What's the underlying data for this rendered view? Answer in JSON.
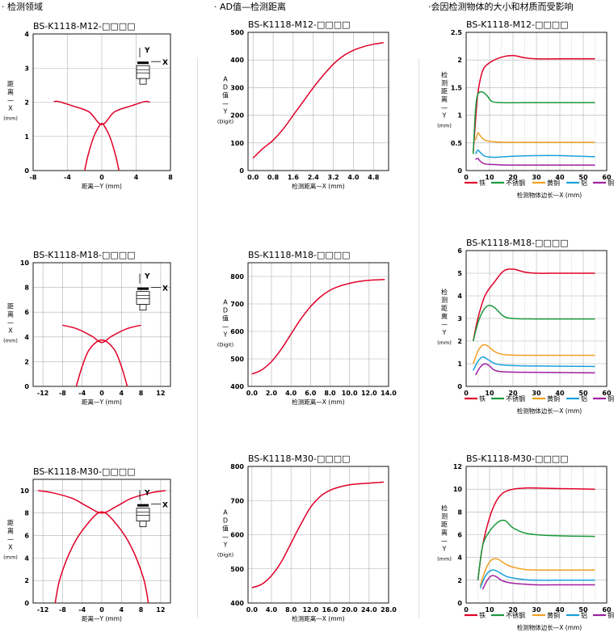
{
  "headers": {
    "col1": "· 检测领域",
    "col2": "· AD值—检测距离",
    "col3": "·会因检测物体的大小和材质而受影响"
  },
  "colors": {
    "iron": "#e00028",
    "stainless": "#1a9a3c",
    "brass": "#f0a020",
    "aluminum": "#1aa0dc",
    "copper": "#a020a0",
    "grid": "#b0b0b0"
  },
  "icon": "sensor-probe-icon",
  "chart_data": [
    {
      "type": "line",
      "title": "BS-K1118-M12-□□□□",
      "xlabel": "距离—Y (mm)",
      "ylabel": "距离—X (mm)",
      "ylabel_chars": [
        "距",
        "离",
        "—",
        "X"
      ],
      "ylabel_unit": "(mm)",
      "xlim": [
        -8,
        8
      ],
      "ylim": [
        0,
        4
      ],
      "xticks": [
        -8,
        -4,
        0,
        4,
        8
      ],
      "yticks": [
        0,
        1,
        2,
        3,
        4
      ],
      "icon_labels": {
        "y": "Y",
        "x": "X"
      },
      "series": [
        {
          "x": [
            -5.6,
            -5,
            -3.5,
            -1.5,
            0,
            1.5,
            3.5,
            5,
            5.6
          ],
          "y": [
            2.02,
            2.02,
            1.9,
            1.72,
            1.35,
            1.72,
            1.9,
            2.02,
            2.0
          ]
        },
        {
          "x": [
            -2.0,
            -1.6,
            -1.0,
            -0.5,
            0,
            0.5,
            1.0,
            1.6,
            2.0
          ],
          "y": [
            0.0,
            0.45,
            0.95,
            1.22,
            1.38,
            1.22,
            0.95,
            0.45,
            0.0
          ]
        }
      ]
    },
    {
      "type": "line",
      "title": "BS-K1118-M18-□□□□",
      "xlabel": "距离—Y (mm)",
      "ylabel": "距离—X (mm)",
      "ylabel_chars": [
        "距",
        "离",
        "—",
        "X"
      ],
      "ylabel_unit": "(mm)",
      "xlim": [
        -14,
        14
      ],
      "ylim": [
        0,
        10
      ],
      "xticks": [
        -12,
        -8,
        -4,
        0,
        4,
        8,
        12
      ],
      "yticks": [
        0,
        2,
        4,
        6,
        8,
        10
      ],
      "icon_labels": {
        "y": "Y",
        "x": "X"
      },
      "series": [
        {
          "x": [
            -8,
            -5,
            -2,
            0,
            2,
            5,
            8
          ],
          "y": [
            4.95,
            4.65,
            4.05,
            3.55,
            4.05,
            4.65,
            4.95
          ]
        },
        {
          "x": [
            -5.2,
            -4.0,
            -2.5,
            0,
            2.5,
            4.0,
            5.2
          ],
          "y": [
            0,
            1.6,
            3.0,
            3.75,
            3.0,
            1.6,
            0
          ]
        }
      ]
    },
    {
      "type": "line",
      "title": "BS-K1118-M30-□□□□",
      "xlabel": "距离—Y (mm)",
      "ylabel": "距离—X (mm)",
      "ylabel_chars": [
        "距",
        "离",
        "—",
        "X"
      ],
      "ylabel_unit": "(mm)",
      "xlim": [
        -14,
        14
      ],
      "ylim": [
        0,
        11
      ],
      "xticks": [
        -12,
        -8,
        -4,
        0,
        4,
        8,
        12
      ],
      "yticks": [
        0,
        2,
        4,
        6,
        8,
        10
      ],
      "icon_labels": {
        "y": "Y",
        "x": "X"
      },
      "series": [
        {
          "x": [
            -13,
            -10,
            -6,
            -3,
            0,
            3,
            6,
            10,
            13
          ],
          "y": [
            10.0,
            9.8,
            9.3,
            8.6,
            8.0,
            8.6,
            9.3,
            9.8,
            10.0
          ]
        },
        {
          "x": [
            -9.5,
            -8.5,
            -6,
            -3,
            0,
            3,
            6,
            8.5,
            9.5
          ],
          "y": [
            0,
            2.2,
            5.0,
            7.0,
            8.1,
            7.0,
            5.0,
            2.2,
            0
          ]
        }
      ]
    },
    {
      "type": "line",
      "title": "BS-K1118-M12-□□□□",
      "xlabel": "检测距离—X (mm)",
      "ylabel": "AD值—Y (Digit)",
      "ylabel_chars": [
        "A",
        "D",
        "值",
        "—",
        "Y"
      ],
      "ylabel_unit": "(Digit)",
      "xlim": [
        -0.2,
        5.4
      ],
      "ylim": [
        0,
        500
      ],
      "xticks": [
        0.0,
        0.8,
        1.6,
        2.4,
        3.2,
        4.0,
        4.8
      ],
      "xtick_labels": [
        "0.0",
        "0.8",
        "1.6",
        "2.4",
        "3.2",
        "4.0",
        "4.8"
      ],
      "yticks": [
        0,
        100,
        200,
        300,
        400,
        500
      ],
      "series": [
        {
          "x": [
            0.0,
            0.4,
            0.8,
            1.2,
            1.6,
            2.0,
            2.4,
            2.8,
            3.2,
            3.6,
            4.0,
            4.4,
            4.8,
            5.2
          ],
          "y": [
            45,
            80,
            110,
            150,
            200,
            250,
            300,
            345,
            385,
            415,
            435,
            448,
            457,
            463
          ]
        }
      ]
    },
    {
      "type": "line",
      "title": "BS-K1118-M18-□□□□",
      "xlabel": "检测距离—X (mm)",
      "ylabel": "AD值—Y (Digit)",
      "ylabel_chars": [
        "A",
        "D",
        "值",
        "—",
        "Y"
      ],
      "ylabel_unit": "(Digit)",
      "xlim": [
        -0.4,
        14.0
      ],
      "ylim": [
        400,
        850
      ],
      "xticks": [
        0,
        2,
        4,
        6,
        8,
        10,
        12,
        14
      ],
      "xtick_labels": [
        "0.0",
        "2.0",
        "4.0",
        "6.0",
        "8.0",
        "10.0",
        "12.0",
        "14.0"
      ],
      "yticks": [
        400,
        500,
        600,
        700,
        800
      ],
      "series": [
        {
          "x": [
            0,
            1,
            2,
            3,
            4,
            5,
            6,
            7,
            8,
            9,
            10,
            11,
            12,
            13,
            13.6
          ],
          "y": [
            445,
            460,
            490,
            535,
            590,
            645,
            690,
            725,
            750,
            765,
            775,
            782,
            786,
            788,
            789
          ]
        }
      ]
    },
    {
      "type": "line",
      "title": "BS-K1118-M30-□□□□",
      "xlabel": "检测距离—X (mm)",
      "ylabel": "AD值—Y (Digit)",
      "ylabel_chars": [
        "A",
        "D",
        "值",
        "—",
        "Y"
      ],
      "ylabel_unit": "(Digit)",
      "xlim": [
        -0.8,
        28.0
      ],
      "ylim": [
        400,
        800
      ],
      "xticks": [
        0,
        4,
        8,
        12,
        16,
        20,
        24,
        28
      ],
      "xtick_labels": [
        "0.0",
        "4.0",
        "8.0",
        "12.0",
        "16.0",
        "20.0",
        "24.0",
        "28.0"
      ],
      "yticks": [
        400,
        500,
        600,
        700,
        800
      ],
      "series": [
        {
          "x": [
            0,
            2,
            4,
            6,
            8,
            10,
            12,
            14,
            16,
            18,
            20,
            22,
            24,
            26,
            27
          ],
          "y": [
            445,
            455,
            480,
            520,
            575,
            630,
            680,
            712,
            730,
            740,
            746,
            749,
            751,
            753,
            754
          ]
        }
      ]
    },
    {
      "type": "line",
      "title": "BS-K1118-M12-□□□□",
      "xlabel": "检测物体边长—X (mm)",
      "ylabel": "检测距离—Y (mm)",
      "ylabel_chars": [
        "检",
        "测",
        "距",
        "离",
        "—",
        "Y"
      ],
      "ylabel_unit": "(mm)",
      "xlim": [
        0,
        60
      ],
      "ylim": [
        0,
        2.5
      ],
      "xticks": [
        0,
        10,
        20,
        30,
        40,
        50,
        60
      ],
      "yticks": [
        0,
        0.5,
        1,
        1.5,
        2,
        2.5
      ],
      "ytick_labels": [
        "0",
        "0.5",
        "1",
        "1.5",
        "2",
        "2.5"
      ],
      "legend": [
        "铁",
        "不锈钢",
        "黄铜",
        "铝",
        "铜"
      ],
      "series": [
        {
          "name": "铁",
          "x": [
            3,
            4,
            5,
            7,
            10,
            15,
            20,
            25,
            30,
            40,
            55
          ],
          "y": [
            0.3,
            0.9,
            1.4,
            1.8,
            1.95,
            2.05,
            2.08,
            2.04,
            2.02,
            2.02,
            2.02
          ]
        },
        {
          "name": "不锈钢",
          "x": [
            3,
            4,
            5,
            7,
            9,
            11,
            15,
            25,
            55
          ],
          "y": [
            0.3,
            1.1,
            1.38,
            1.42,
            1.35,
            1.25,
            1.23,
            1.23,
            1.23
          ]
        },
        {
          "name": "黄铜",
          "x": [
            4,
            5,
            6,
            8,
            12,
            20,
            55
          ],
          "y": [
            0.55,
            0.68,
            0.63,
            0.55,
            0.52,
            0.51,
            0.51
          ]
        },
        {
          "name": "铝",
          "x": [
            4,
            5,
            6,
            8,
            12,
            20,
            30,
            40,
            55
          ],
          "y": [
            0.3,
            0.37,
            0.33,
            0.26,
            0.24,
            0.26,
            0.27,
            0.27,
            0.25
          ]
        },
        {
          "name": "铜",
          "x": [
            4,
            5,
            6,
            8,
            12,
            20,
            55
          ],
          "y": [
            0.2,
            0.22,
            0.17,
            0.12,
            0.11,
            0.1,
            0.1
          ]
        }
      ]
    },
    {
      "type": "line",
      "title": "BS-K1118-M18-□□□□",
      "xlabel": "检测物体边长—X (mm)",
      "ylabel": "检测距离—Y (mm)",
      "ylabel_chars": [
        "检",
        "测",
        "距",
        "离",
        "—",
        "Y"
      ],
      "ylabel_unit": "(mm)",
      "xlim": [
        0,
        60
      ],
      "ylim": [
        0,
        6
      ],
      "xticks": [
        0,
        10,
        20,
        30,
        40,
        50,
        60
      ],
      "yticks": [
        0,
        1,
        2,
        3,
        4,
        5,
        6
      ],
      "legend": [
        "铁",
        "不锈钢",
        "黄铜",
        "铝",
        "铜"
      ],
      "series": [
        {
          "name": "铁",
          "x": [
            3,
            5,
            8,
            12,
            16,
            20,
            25,
            30,
            40,
            55
          ],
          "y": [
            2.0,
            3.0,
            4.0,
            4.6,
            5.1,
            5.18,
            5.05,
            5.0,
            5.0,
            5.0
          ]
        },
        {
          "name": "不锈钢",
          "x": [
            3,
            5,
            7,
            9,
            11,
            13,
            16,
            20,
            30,
            55
          ],
          "y": [
            2.0,
            2.8,
            3.3,
            3.55,
            3.55,
            3.4,
            3.1,
            3.0,
            2.98,
            2.98
          ]
        },
        {
          "name": "黄铜",
          "x": [
            3,
            5,
            7,
            9,
            12,
            15,
            20,
            30,
            55
          ],
          "y": [
            1.0,
            1.55,
            1.82,
            1.8,
            1.55,
            1.42,
            1.38,
            1.37,
            1.37
          ]
        },
        {
          "name": "铝",
          "x": [
            3,
            5,
            7,
            9,
            12,
            15,
            20,
            30,
            55
          ],
          "y": [
            0.7,
            1.1,
            1.3,
            1.2,
            1.02,
            0.95,
            0.92,
            0.9,
            0.88
          ]
        },
        {
          "name": "铜",
          "x": [
            4,
            6,
            8,
            10,
            12,
            15,
            20,
            30,
            55
          ],
          "y": [
            0.5,
            0.85,
            1.0,
            0.9,
            0.72,
            0.65,
            0.63,
            0.62,
            0.6
          ]
        }
      ]
    },
    {
      "type": "line",
      "title": "BS-K1118-M30-□□□□",
      "xlabel": "检测物体边长—X (mm)",
      "ylabel": "检测距离—Y (mm)",
      "ylabel_chars": [
        "检",
        "测",
        "距",
        "离",
        "—",
        "Y"
      ],
      "ylabel_unit": "(mm)",
      "xlim": [
        0,
        60
      ],
      "ylim": [
        0,
        12
      ],
      "xticks": [
        0,
        10,
        20,
        30,
        40,
        50,
        60
      ],
      "yticks": [
        0,
        2,
        4,
        6,
        8,
        10,
        12
      ],
      "legend": [
        "铁",
        "不锈钢",
        "黄铜",
        "铝",
        "铜"
      ],
      "series": [
        {
          "name": "铁",
          "x": [
            5,
            7,
            10,
            13,
            16,
            20,
            25,
            30,
            40,
            55
          ],
          "y": [
            2.0,
            5.0,
            7.5,
            9.0,
            9.7,
            10.0,
            10.1,
            10.1,
            10.05,
            10.0
          ]
        },
        {
          "name": "不锈钢",
          "x": [
            5,
            7,
            10,
            13,
            15,
            17,
            20,
            25,
            30,
            40,
            55
          ],
          "y": [
            2.0,
            5.0,
            6.3,
            7.0,
            7.25,
            7.2,
            6.6,
            6.15,
            6.0,
            5.9,
            5.85
          ]
        },
        {
          "name": "黄铜",
          "x": [
            6,
            8,
            10,
            12,
            14,
            17,
            20,
            25,
            30,
            40,
            55
          ],
          "y": [
            1.5,
            2.8,
            3.6,
            3.9,
            3.8,
            3.4,
            3.15,
            2.95,
            2.9,
            2.9,
            2.9
          ]
        },
        {
          "name": "铝",
          "x": [
            6,
            8,
            10,
            12,
            14,
            17,
            20,
            25,
            30,
            40,
            55
          ],
          "y": [
            1.3,
            2.3,
            2.8,
            2.9,
            2.7,
            2.35,
            2.2,
            2.05,
            2.0,
            2.0,
            2.0
          ]
        },
        {
          "name": "铜",
          "x": [
            7,
            9,
            11,
            13,
            15,
            18,
            22,
            30,
            40,
            55
          ],
          "y": [
            1.2,
            2.0,
            2.4,
            2.3,
            2.0,
            1.8,
            1.7,
            1.6,
            1.6,
            1.6
          ]
        }
      ]
    }
  ]
}
